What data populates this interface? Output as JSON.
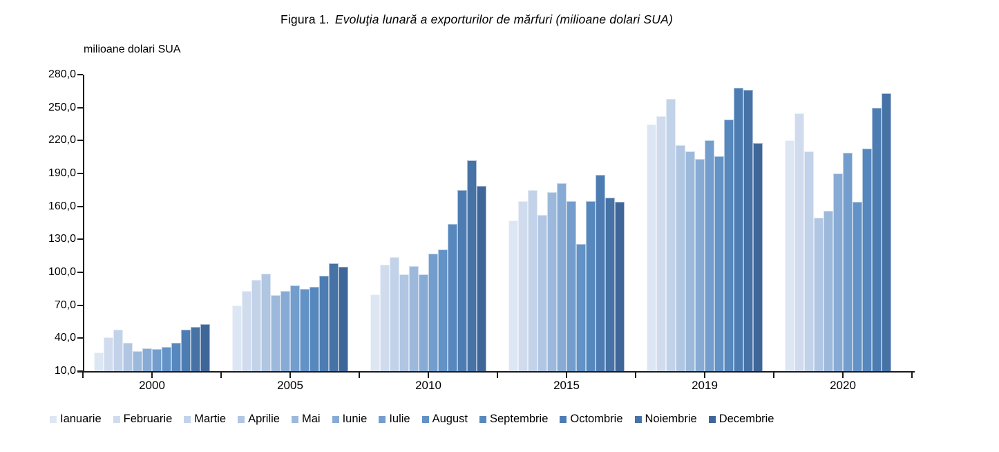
{
  "figure": {
    "title_prefix": "Figura 1.",
    "title_italic": "Evoluţia lunară a exporturilor de mărfuri (milioane dolari SUA)",
    "y_axis_label": "milioane dolari SUA"
  },
  "chart_data": {
    "type": "bar",
    "title": "Figura 1. Evoluţia lunară a exporturilor de mărfuri (milioane dolari SUA)",
    "xlabel": "",
    "ylabel": "milioane dolari SUA",
    "ylim": [
      10,
      280
    ],
    "ytick_step": 30,
    "ytick_labels": [
      "280,0",
      "250,0",
      "220,0",
      "190,0",
      "160,0",
      "130,0",
      "100,0",
      "70,0",
      "40,0",
      "10,0"
    ],
    "grid": false,
    "legend_position": "bottom",
    "categories": [
      "2000",
      "2005",
      "2010",
      "2015",
      "2019",
      "2020"
    ],
    "series": [
      {
        "name": "Ianuarie",
        "color": "#dde7f3",
        "values": [
          27,
          70,
          80,
          147,
          235,
          220
        ]
      },
      {
        "name": "Februarie",
        "color": "#d0dcee",
        "values": [
          41,
          83,
          107,
          165,
          242,
          245
        ]
      },
      {
        "name": "Martie",
        "color": "#c2d2e9",
        "values": [
          48,
          93,
          114,
          175,
          258,
          210
        ]
      },
      {
        "name": "Aprilie",
        "color": "#b0c6e2",
        "values": [
          36,
          99,
          98,
          152,
          216,
          150
        ]
      },
      {
        "name": "Mai",
        "color": "#9cb9dc",
        "values": [
          28,
          79,
          106,
          173,
          210,
          156
        ]
      },
      {
        "name": "Iunie",
        "color": "#87abd5",
        "values": [
          31,
          83,
          98,
          181,
          203,
          190
        ]
      },
      {
        "name": "Iulie",
        "color": "#739dcd",
        "values": [
          30,
          88,
          117,
          165,
          220,
          209
        ]
      },
      {
        "name": "August",
        "color": "#6292c6",
        "values": [
          32,
          85,
          121,
          126,
          206,
          164
        ]
      },
      {
        "name": "Septembrie",
        "color": "#5687bd",
        "values": [
          36,
          87,
          144,
          165,
          239,
          213
        ]
      },
      {
        "name": "Octombrie",
        "color": "#4d7cb2",
        "values": [
          48,
          97,
          175,
          189,
          268,
          250
        ]
      },
      {
        "name": "Noiembrie",
        "color": "#4672a6",
        "values": [
          50,
          108,
          202,
          168,
          266,
          263
        ]
      },
      {
        "name": "Decembrie",
        "color": "#3f6699",
        "values": [
          53,
          105,
          179,
          164,
          218,
          null
        ]
      }
    ]
  }
}
